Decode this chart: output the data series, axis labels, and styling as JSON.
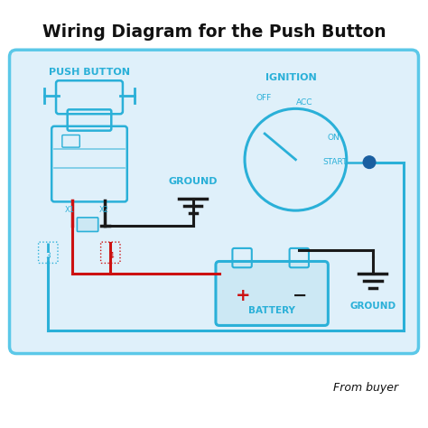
{
  "title": "Wiring Diagram for the Push Button",
  "bg_color": "#ffffff",
  "panel_bg": "#dff0fa",
  "panel_border": "#5bc8e8",
  "cyan": "#2ab0d8",
  "black": "#1a1a1a",
  "red": "#cc1111",
  "dark_blue": "#1a5fa0",
  "from_buyer": "From buyer",
  "push_button_label": "PUSH BUTTON",
  "ignition_label": "IGNITION",
  "ground_label1": "GROUND",
  "ground_label2": "GROUND",
  "battery_label": "BATTERY",
  "off_label": "OFF",
  "acc_label": "ACC",
  "on_label": "ON",
  "start_label": "START"
}
